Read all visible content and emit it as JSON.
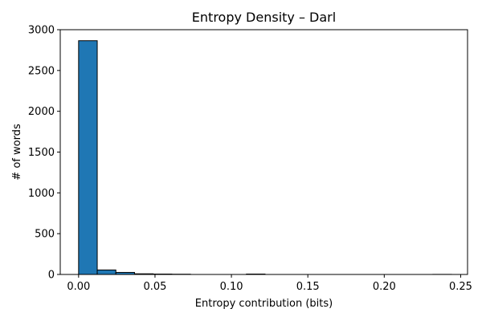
{
  "chart_data": {
    "type": "bar",
    "title": "Entropy Density – Darl",
    "xlabel": "Entropy contribution (bits)",
    "ylabel": "# of words",
    "xlim": [
      -0.012,
      0.2545
    ],
    "ylim": [
      0,
      3000
    ],
    "x_ticks": [
      0.0,
      0.05,
      0.1,
      0.15,
      0.2,
      0.25
    ],
    "x_tick_labels": [
      "0.00",
      "0.05",
      "0.10",
      "0.15",
      "0.20",
      "0.25"
    ],
    "y_ticks": [
      0,
      500,
      1000,
      1500,
      2000,
      2500,
      3000
    ],
    "y_tick_labels": [
      "0",
      "500",
      "1000",
      "1500",
      "2000",
      "2500",
      "3000"
    ],
    "bin_edges": [
      0.0,
      0.0122,
      0.0244,
      0.0366,
      0.0488,
      0.061,
      0.0732,
      0.0854,
      0.0976,
      0.1098,
      0.122,
      0.1342,
      0.1464,
      0.1586,
      0.1708,
      0.183,
      0.1952,
      0.2074,
      0.2196,
      0.2318,
      0.244
    ],
    "counts": [
      2865,
      55,
      25,
      8,
      5,
      3,
      0,
      0,
      0,
      5,
      0,
      0,
      0,
      0,
      0,
      0,
      0,
      0,
      0,
      1
    ],
    "bar_color": "#1f77b4",
    "edge_color": "#000000",
    "grid": false,
    "legend": "none"
  }
}
